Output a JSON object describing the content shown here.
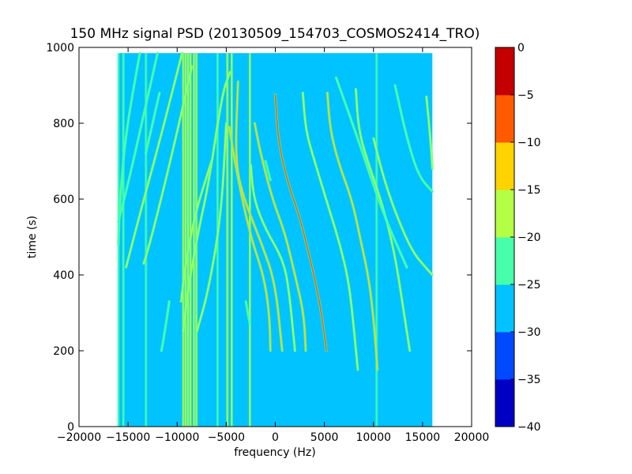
{
  "chart_data": {
    "type": "heatmap",
    "title": "150 MHz signal PSD (20130509_154703_COSMOS2414_TRO)",
    "xlabel": "frequency (Hz)",
    "ylabel": "time (s)",
    "xlim": [
      -20000,
      20000
    ],
    "ylim": [
      0,
      1000
    ],
    "xticks": [
      -20000,
      -15000,
      -10000,
      -5000,
      0,
      5000,
      10000,
      15000,
      20000
    ],
    "xtick_labels": [
      "−20000",
      "−15000",
      "−10000",
      "−5000",
      "0",
      "5000",
      "10000",
      "15000",
      "20000"
    ],
    "yticks": [
      0,
      200,
      400,
      600,
      800,
      1000
    ],
    "ytick_labels": [
      "0",
      "200",
      "400",
      "600",
      "800",
      "1000"
    ],
    "data_extent": {
      "x": [
        -16000,
        16000
      ],
      "y": [
        0,
        985
      ]
    },
    "background_level": -27,
    "colorbar": {
      "levels": [
        -40,
        -35,
        -30,
        -25,
        -20,
        -15,
        -10,
        -5,
        0
      ],
      "tick_labels": [
        "−40",
        "−35",
        "−30",
        "−25",
        "−20",
        "−15",
        "−10",
        "−5",
        "0"
      ],
      "colors": [
        "#0000c4",
        "#0049ff",
        "#00c3ff",
        "#47ffaa",
        "#b4ff43",
        "#ffd200",
        "#ff5a00",
        "#c40000"
      ]
    },
    "vertical_lines": [
      {
        "x": -16000,
        "level": -22
      },
      {
        "x": -15500,
        "level": -22
      },
      {
        "x": -13200,
        "level": -22
      },
      {
        "x": -9400,
        "level": -20
      },
      {
        "x": -9150,
        "level": -17
      },
      {
        "x": -8900,
        "level": -20
      },
      {
        "x": -8650,
        "level": -17
      },
      {
        "x": -8300,
        "level": -20
      },
      {
        "x": -8050,
        "level": -20
      },
      {
        "x": -5900,
        "level": -22
      },
      {
        "x": -4900,
        "level": -20
      },
      {
        "x": -4450,
        "level": -20
      },
      {
        "x": -2600,
        "level": -17
      },
      {
        "x": 10300,
        "level": -24
      }
    ],
    "traces": [
      {
        "level": -22,
        "points": [
          [
            -13800,
            985
          ],
          [
            -15200,
            780
          ],
          [
            -15800,
            610
          ],
          [
            -16000,
            480
          ]
        ]
      },
      {
        "level": -22,
        "points": [
          [
            -12000,
            985
          ],
          [
            -13600,
            800
          ],
          [
            -15000,
            640
          ],
          [
            -16000,
            540
          ]
        ]
      },
      {
        "level": -20,
        "points": [
          [
            -9500,
            985
          ],
          [
            -11500,
            780
          ],
          [
            -13800,
            560
          ],
          [
            -15200,
            420
          ]
        ]
      },
      {
        "level": -20,
        "points": [
          [
            -8500,
            950
          ],
          [
            -10500,
            720
          ],
          [
            -12600,
            500
          ],
          [
            -13400,
            430
          ]
        ]
      },
      {
        "level": -20,
        "points": [
          [
            -6500,
            700
          ],
          [
            -8200,
            560
          ],
          [
            -9200,
            420
          ],
          [
            -9600,
            330
          ]
        ]
      },
      {
        "level": -17,
        "points": [
          [
            -4600,
            935
          ],
          [
            -5400,
            880
          ],
          [
            -6800,
            640
          ],
          [
            -7800,
            520
          ],
          [
            -8800,
            380
          ],
          [
            -9400,
            250
          ]
        ]
      },
      {
        "level": -20,
        "points": [
          [
            -5000,
            800
          ],
          [
            -5500,
            560
          ],
          [
            -6800,
            360
          ],
          [
            -8000,
            250
          ]
        ]
      },
      {
        "level": -15,
        "points": [
          [
            -4700,
            790
          ],
          [
            -3800,
            650
          ],
          [
            -2500,
            500
          ],
          [
            -1200,
            400
          ],
          [
            -600,
            300
          ],
          [
            -500,
            200
          ]
        ]
      },
      {
        "level": -15,
        "points": [
          [
            -3800,
            910
          ],
          [
            -4100,
            700
          ],
          [
            -3200,
            600
          ],
          [
            -1500,
            490
          ],
          [
            0,
            380
          ],
          [
            700,
            200
          ]
        ]
      },
      {
        "level": -17,
        "points": [
          [
            -2500,
            690
          ],
          [
            -2200,
            600
          ],
          [
            -1000,
            520
          ],
          [
            800,
            440
          ],
          [
            1400,
            360
          ],
          [
            2000,
            200
          ]
        ]
      },
      {
        "level": -15,
        "points": [
          [
            -2100,
            800
          ],
          [
            -1500,
            720
          ],
          [
            -300,
            600
          ],
          [
            1000,
            510
          ],
          [
            2000,
            400
          ],
          [
            2900,
            300
          ],
          [
            3100,
            200
          ]
        ]
      },
      {
        "level": -10,
        "points": [
          [
            0,
            875
          ],
          [
            300,
            750
          ],
          [
            1300,
            640
          ],
          [
            2400,
            560
          ],
          [
            3400,
            460
          ],
          [
            4600,
            320
          ],
          [
            5200,
            200
          ]
        ]
      },
      {
        "level": -17,
        "points": [
          [
            2800,
            880
          ],
          [
            3100,
            780
          ],
          [
            4000,
            700
          ],
          [
            5400,
            580
          ],
          [
            6600,
            480
          ],
          [
            7500,
            380
          ],
          [
            8000,
            260
          ],
          [
            8400,
            150
          ]
        ]
      },
      {
        "level": -15,
        "points": [
          [
            5300,
            880
          ],
          [
            5600,
            780
          ],
          [
            6500,
            690
          ],
          [
            7800,
            600
          ],
          [
            8800,
            480
          ],
          [
            9600,
            380
          ],
          [
            10100,
            260
          ],
          [
            10400,
            150
          ]
        ]
      },
      {
        "level": -17,
        "points": [
          [
            8200,
            890
          ],
          [
            8500,
            780
          ],
          [
            9400,
            700
          ],
          [
            10600,
            610
          ],
          [
            11600,
            520
          ],
          [
            12400,
            420
          ],
          [
            13100,
            300
          ],
          [
            13700,
            200
          ]
        ]
      },
      {
        "level": -20,
        "points": [
          [
            10000,
            760
          ],
          [
            11200,
            640
          ],
          [
            12600,
            540
          ],
          [
            14000,
            460
          ],
          [
            15300,
            420
          ],
          [
            16000,
            400
          ]
        ]
      },
      {
        "level": -22,
        "points": [
          [
            12200,
            900
          ],
          [
            13400,
            760
          ],
          [
            14600,
            660
          ],
          [
            16000,
            620
          ]
        ]
      },
      {
        "level": -20,
        "points": [
          [
            15400,
            870
          ],
          [
            15800,
            760
          ],
          [
            16000,
            680
          ]
        ]
      },
      {
        "level": -24,
        "points": [
          [
            6200,
            920
          ],
          [
            8400,
            760
          ],
          [
            11000,
            560
          ],
          [
            13400,
            420
          ]
        ]
      },
      {
        "level": -24,
        "points": [
          [
            -11800,
            880
          ],
          [
            -13200,
            720
          ]
        ]
      },
      {
        "level": -24,
        "points": [
          [
            -10800,
            330
          ],
          [
            -11200,
            260
          ],
          [
            -11600,
            200
          ]
        ]
      },
      {
        "level": -24,
        "points": [
          [
            -1000,
            700
          ],
          [
            -500,
            650
          ]
        ]
      },
      {
        "level": -24,
        "points": [
          [
            -3000,
            330
          ],
          [
            -2600,
            270
          ]
        ]
      }
    ]
  }
}
